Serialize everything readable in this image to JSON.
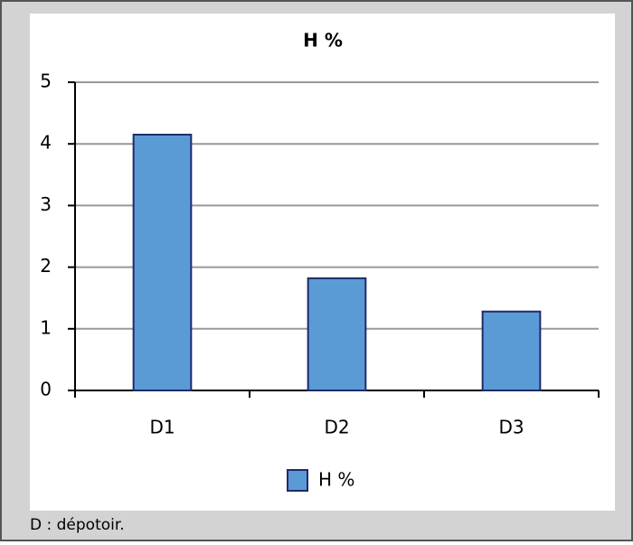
{
  "chart_data": {
    "type": "bar",
    "title": "H %",
    "categories": [
      "D1",
      "D2",
      "D3"
    ],
    "series": [
      {
        "name": "H %",
        "color": "#5b9bd5",
        "values": [
          4.15,
          1.82,
          1.28
        ]
      }
    ],
    "ylim": [
      0,
      5
    ],
    "yticks": [
      0,
      1,
      2,
      3,
      4,
      5
    ],
    "grid": true,
    "legend": "bottom",
    "note": "D : dépotoir."
  }
}
